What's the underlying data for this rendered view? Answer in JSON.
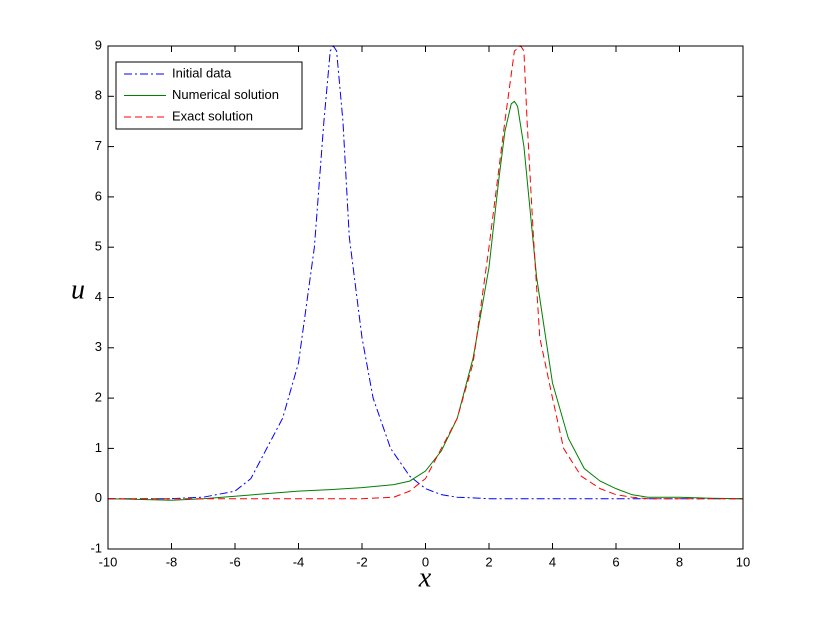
{
  "chart_data": {
    "type": "line",
    "xlabel": "x",
    "ylabel": "u",
    "xlim": [
      -10,
      10
    ],
    "ylim": [
      -1,
      9
    ],
    "xticks": [
      -10,
      -8,
      -6,
      -4,
      -2,
      0,
      2,
      4,
      6,
      8,
      10
    ],
    "yticks": [
      -1,
      0,
      1,
      2,
      3,
      4,
      5,
      6,
      7,
      8,
      9
    ],
    "legend_position": "upper left",
    "series": [
      {
        "name": "Initial data",
        "color": "#0000ff",
        "style": "dashdot",
        "x": [
          -10,
          -8,
          -7,
          -6,
          -5.5,
          -5,
          -4.5,
          -4,
          -3.5,
          -3.2,
          -3,
          -2.9,
          -2.8,
          -2.6,
          -2.4,
          -2,
          -1.65,
          -1.1,
          -0.5,
          0,
          0.5,
          1,
          2,
          4,
          6,
          8,
          10
        ],
        "values": [
          0,
          0,
          0.03,
          0.15,
          0.4,
          1.0,
          1.6,
          2.7,
          5.0,
          7.5,
          8.9,
          9,
          8.9,
          7.5,
          5.2,
          3.2,
          2.0,
          1.0,
          0.45,
          0.2,
          0.08,
          0.03,
          0,
          0,
          0,
          0,
          0
        ]
      },
      {
        "name": "Numerical solution",
        "color": "#008000",
        "style": "solid",
        "x": [
          -10,
          -8,
          -7,
          -6,
          -5,
          -4,
          -3,
          -2,
          -1,
          -0.5,
          0,
          0.5,
          1,
          1.5,
          2,
          2.3,
          2.5,
          2.7,
          2.8,
          2.9,
          3.1,
          3.5,
          4,
          4.5,
          5,
          5.5,
          6,
          6.5,
          7,
          8,
          9,
          10
        ],
        "values": [
          0,
          -0.03,
          0,
          0.05,
          0.1,
          0.15,
          0.18,
          0.22,
          0.28,
          0.35,
          0.55,
          0.95,
          1.6,
          2.8,
          4.6,
          6.3,
          7.3,
          7.85,
          7.9,
          7.8,
          7.0,
          4.4,
          2.3,
          1.2,
          0.6,
          0.35,
          0.2,
          0.08,
          0.03,
          0.03,
          0.01,
          0
        ]
      },
      {
        "name": "Exact solution",
        "color": "#ff0000",
        "style": "dashed",
        "x": [
          -10,
          -4,
          -2,
          -1,
          -0.5,
          0,
          0.5,
          1,
          1.5,
          2,
          2.5,
          2.8,
          3,
          3.1,
          3.2,
          3.4,
          3.6,
          4,
          4.35,
          4.9,
          5.5,
          6,
          6.5,
          7,
          8,
          10
        ],
        "values": [
          0,
          0,
          0,
          0.03,
          0.15,
          0.4,
          1.0,
          1.6,
          2.7,
          5.0,
          7.5,
          8.9,
          9,
          8.9,
          7.5,
          5.2,
          3.2,
          2.0,
          1.0,
          0.45,
          0.2,
          0.08,
          0.03,
          0,
          0,
          0
        ]
      }
    ]
  }
}
